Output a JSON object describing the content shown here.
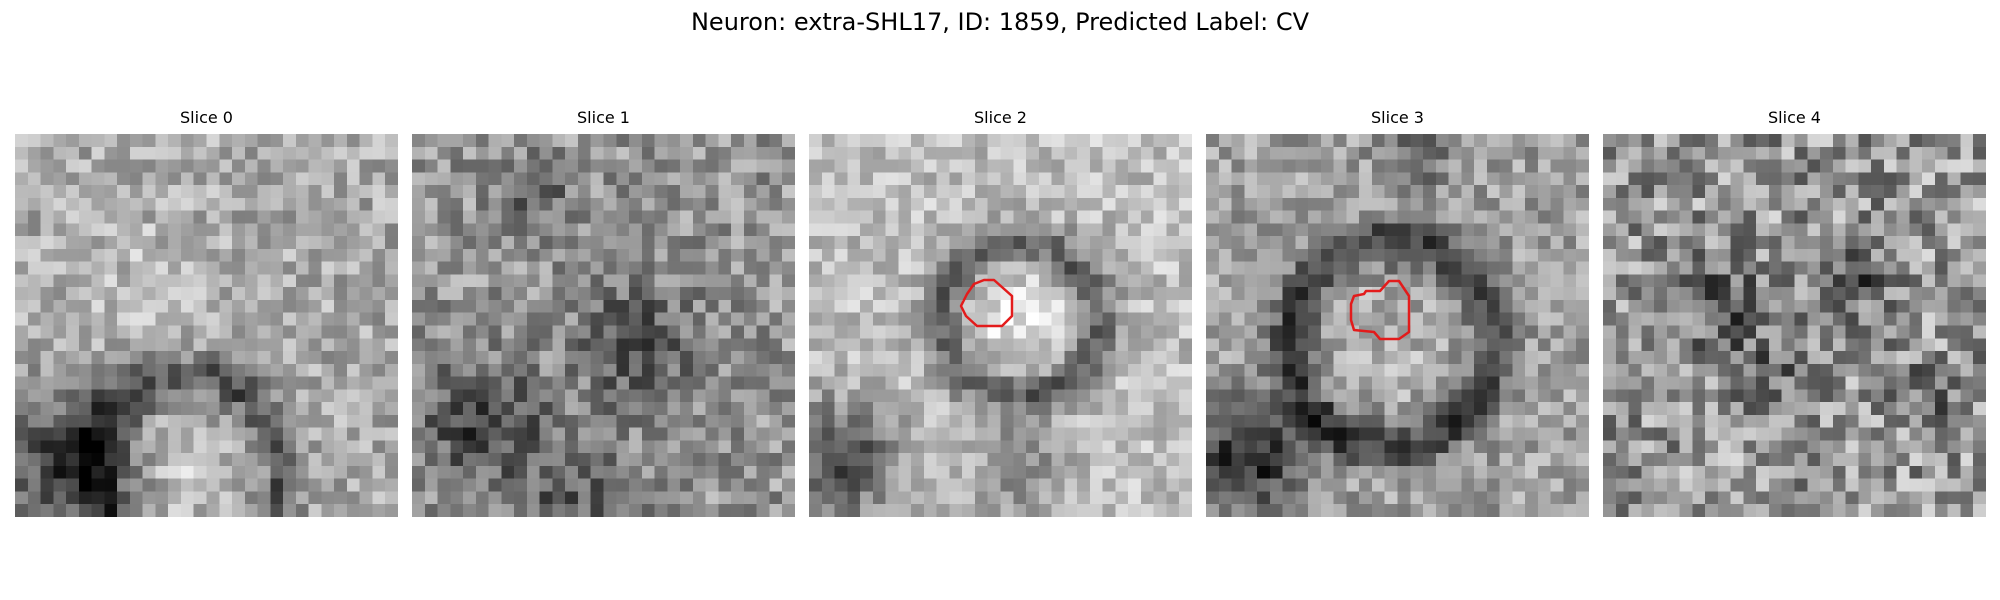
{
  "figure": {
    "title": "Neuron: extra-SHL17, ID: 1859, Predicted Label: CV"
  },
  "panels": [
    {
      "title": "Slice 0",
      "contour": false
    },
    {
      "title": "Slice 1",
      "contour": false
    },
    {
      "title": "Slice 2",
      "contour": true
    },
    {
      "title": "Slice 3",
      "contour": true
    },
    {
      "title": "Slice 4",
      "contour": false
    }
  ],
  "colors": {
    "background": "#ffffff",
    "contour": "#e31b1b",
    "colormap": "grayscale"
  }
}
